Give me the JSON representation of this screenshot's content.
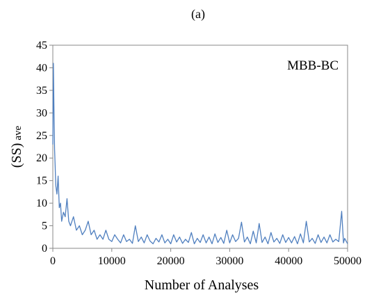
{
  "chart_data": {
    "type": "line",
    "title": "(a)",
    "xlabel": "Number of Analyses",
    "ylabel": "(SS) ave",
    "ylabel_main": "(SS)",
    "ylabel_sub": "ave",
    "annotation": "MBB-BC",
    "xlim": [
      0,
      50000
    ],
    "ylim": [
      0,
      45
    ],
    "x_ticks": [
      0,
      10000,
      20000,
      30000,
      40000,
      50000
    ],
    "y_ticks": [
      0,
      5,
      10,
      15,
      20,
      25,
      30,
      35,
      40,
      45
    ],
    "grid": false,
    "legend": "none",
    "series": [
      {
        "color": "#4f7fbf",
        "x": [
          0,
          100,
          200,
          300,
          400,
          500,
          700,
          900,
          1100,
          1300,
          1500,
          1800,
          2100,
          2400,
          2700,
          3000,
          3500,
          4000,
          4500,
          5000,
          5500,
          6000,
          6500,
          7000,
          7500,
          8000,
          8500,
          9000,
          9500,
          10000,
          10500,
          11000,
          11500,
          12000,
          12500,
          13000,
          13500,
          14000,
          14500,
          15000,
          15500,
          16000,
          16500,
          17000,
          17500,
          18000,
          18500,
          19000,
          19500,
          20000,
          20500,
          21000,
          21500,
          22000,
          22500,
          23000,
          23500,
          24000,
          24500,
          25000,
          25500,
          26000,
          26500,
          27000,
          27500,
          28000,
          28500,
          29000,
          29500,
          30000,
          30500,
          31000,
          31500,
          32000,
          32500,
          33000,
          33500,
          34000,
          34500,
          35000,
          35500,
          36000,
          36500,
          37000,
          37500,
          38000,
          38500,
          39000,
          39500,
          40000,
          40500,
          41000,
          41500,
          42000,
          42500,
          43000,
          43500,
          44000,
          44500,
          45000,
          45500,
          46000,
          46500,
          47000,
          47500,
          48000,
          48500,
          49000,
          49300,
          49500,
          50000
        ],
        "y": [
          23,
          41,
          30,
          22,
          18,
          14,
          12,
          16,
          9,
          10,
          6,
          8,
          7,
          11,
          6,
          5,
          7,
          4,
          5,
          3,
          4,
          6,
          3,
          4,
          2,
          3,
          2,
          4,
          2,
          1.5,
          3,
          2,
          1.2,
          3,
          1.5,
          2,
          1.1,
          5,
          1.5,
          2.5,
          1.2,
          3,
          1.6,
          1,
          2.2,
          1.4,
          3,
          1.2,
          2,
          1,
          3,
          1.4,
          2.5,
          1.1,
          2,
          1.3,
          3.5,
          1,
          2.2,
          1.3,
          3,
          1.2,
          2.5,
          1,
          3.2,
          1.3,
          2.4,
          1.1,
          4,
          1.2,
          3,
          1.5,
          2.2,
          5.8,
          1.4,
          2.5,
          1,
          3.8,
          1.2,
          5.5,
          1.3,
          2.5,
          1,
          3.5,
          1.4,
          2.2,
          1.1,
          3,
          1.3,
          2.4,
          1.2,
          2.6,
          1,
          3.2,
          1.2,
          6,
          1.4,
          2.2,
          1.1,
          3,
          1.3,
          2.5,
          1.2,
          3,
          1.4,
          2,
          1.5,
          8.2,
          1.2,
          2.2,
          1
        ]
      }
    ]
  }
}
